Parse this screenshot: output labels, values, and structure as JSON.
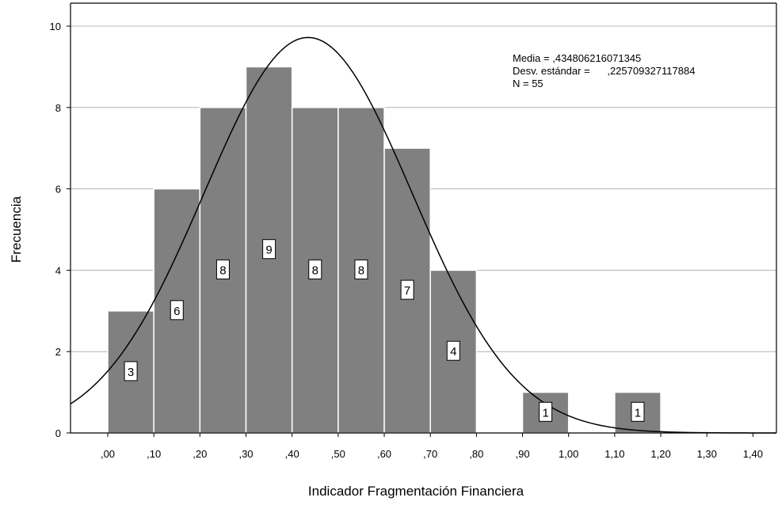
{
  "chart_data": {
    "type": "bar",
    "title": "",
    "xlabel": "Indicador Fragmentación Financiera",
    "ylabel": "Frecuencia",
    "xlim": [
      -0.08,
      1.5
    ],
    "ylim": [
      0,
      10.5
    ],
    "x_ticks": [
      ",00",
      ",10",
      ",20",
      ",30",
      ",40",
      ",50",
      ",60",
      ",70",
      ",80",
      ",90",
      "1,00",
      "1,10",
      "1,20",
      "1,30",
      "1,40"
    ],
    "x_tick_values": [
      0.0,
      0.1,
      0.2,
      0.3,
      0.4,
      0.5,
      0.6,
      0.7,
      0.8,
      0.9,
      1.0,
      1.1,
      1.2,
      1.3,
      1.4
    ],
    "y_ticks": [
      "0",
      "2",
      "4",
      "6",
      "8",
      "10"
    ],
    "y_tick_values": [
      0,
      2,
      4,
      6,
      8,
      10
    ],
    "grid": true,
    "bars": [
      {
        "from": 0.0,
        "to": 0.1,
        "value": 3,
        "label": "3"
      },
      {
        "from": 0.1,
        "to": 0.2,
        "value": 6,
        "label": "6"
      },
      {
        "from": 0.2,
        "to": 0.3,
        "value": 8,
        "label": "8"
      },
      {
        "from": 0.3,
        "to": 0.4,
        "value": 9,
        "label": "9"
      },
      {
        "from": 0.4,
        "to": 0.5,
        "value": 8,
        "label": "8"
      },
      {
        "from": 0.5,
        "to": 0.6,
        "value": 8,
        "label": "8"
      },
      {
        "from": 0.6,
        "to": 0.7,
        "value": 7,
        "label": "7"
      },
      {
        "from": 0.7,
        "to": 0.8,
        "value": 4,
        "label": "4"
      },
      {
        "from": 0.9,
        "to": 1.0,
        "value": 1,
        "label": "1"
      },
      {
        "from": 1.1,
        "to": 1.2,
        "value": 1,
        "label": "1"
      }
    ],
    "normal_curve": {
      "mean": 0.434806216071345,
      "std": 0.225709327117884,
      "n": 55,
      "bin_width": 0.1
    },
    "stats": {
      "mean_line": "Media = ,434806216071345",
      "std_line": "Desv. estándar =      ,225709327117884",
      "n_line": "N = 55"
    },
    "colors": {
      "bar": "#808080",
      "bar_border": "#ffffff",
      "grid": "#b4b4b4",
      "curve": "#000000",
      "axis": "#000000",
      "label_box": "#ffffff"
    }
  }
}
